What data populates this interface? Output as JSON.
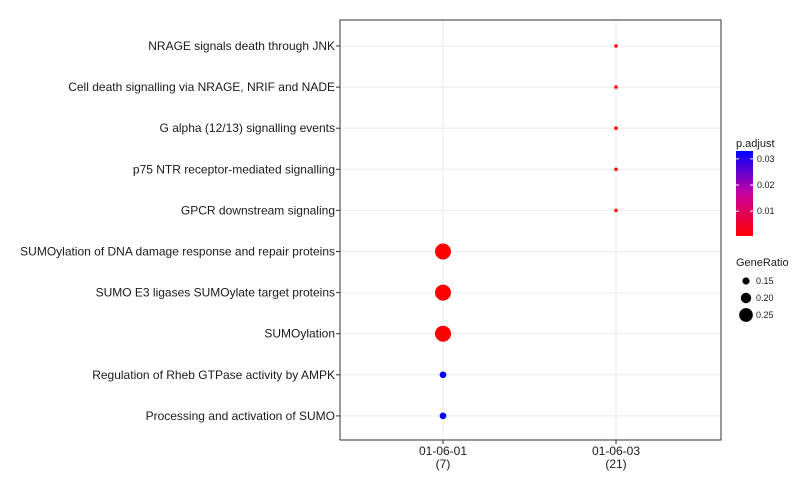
{
  "chart_data": {
    "type": "scatter",
    "title": "",
    "xlabel": "",
    "ylabel": "",
    "x_categories": [
      {
        "label": "01-06-01",
        "count": "(7)"
      },
      {
        "label": "01-06-03",
        "count": "(21)"
      }
    ],
    "y_categories": [
      "NRAGE signals death through JNK",
      "Cell death signalling via NRAGE, NRIF and NADE",
      "G alpha (12/13) signalling events",
      "p75 NTR receptor-mediated signalling",
      "GPCR downstream signaling",
      "SUMOylation of DNA damage response and repair proteins",
      "SUMO E3 ligases SUMOylate target proteins",
      "SUMOylation",
      "Regulation of Rheb GTPase activity by AMPK",
      "Processing and activation of SUMO"
    ],
    "points": [
      {
        "x": "01-06-03",
        "y": "NRAGE signals death through JNK",
        "gene_ratio": 0.095,
        "p_adjust": 0.0005
      },
      {
        "x": "01-06-03",
        "y": "Cell death signalling via NRAGE, NRIF and NADE",
        "gene_ratio": 0.095,
        "p_adjust": 0.0005
      },
      {
        "x": "01-06-03",
        "y": "G alpha (12/13) signalling events",
        "gene_ratio": 0.095,
        "p_adjust": 0.0005
      },
      {
        "x": "01-06-03",
        "y": "p75 NTR receptor-mediated signalling",
        "gene_ratio": 0.095,
        "p_adjust": 0.0005
      },
      {
        "x": "01-06-03",
        "y": "GPCR downstream signaling",
        "gene_ratio": 0.095,
        "p_adjust": 0.0005
      },
      {
        "x": "01-06-01",
        "y": "SUMOylation of DNA damage response and repair proteins",
        "gene_ratio": 0.286,
        "p_adjust": 0.0005
      },
      {
        "x": "01-06-01",
        "y": "SUMO E3 ligases SUMOylate target proteins",
        "gene_ratio": 0.286,
        "p_adjust": 0.0005
      },
      {
        "x": "01-06-01",
        "y": "SUMOylation",
        "gene_ratio": 0.286,
        "p_adjust": 0.0005
      },
      {
        "x": "01-06-01",
        "y": "Regulation of Rheb GTPase activity by AMPK",
        "gene_ratio": 0.143,
        "p_adjust": 0.033
      },
      {
        "x": "01-06-01",
        "y": "Processing and activation of SUMO",
        "gene_ratio": 0.143,
        "p_adjust": 0.033
      }
    ],
    "color_legend": {
      "title": "p.adjust",
      "ticks": [
        "0.01",
        "0.02",
        "0.03"
      ],
      "tick_values": [
        0.01,
        0.02,
        0.03
      ],
      "range": [
        0.0005,
        0.033
      ],
      "low_color": "#ff0000",
      "high_color": "#0000ff"
    },
    "size_legend": {
      "title": "GeneRatio",
      "ticks": [
        "0.15",
        "0.20",
        "0.25"
      ],
      "tick_values": [
        0.15,
        0.2,
        0.25
      ]
    },
    "grid": true,
    "legend_position": "right"
  }
}
